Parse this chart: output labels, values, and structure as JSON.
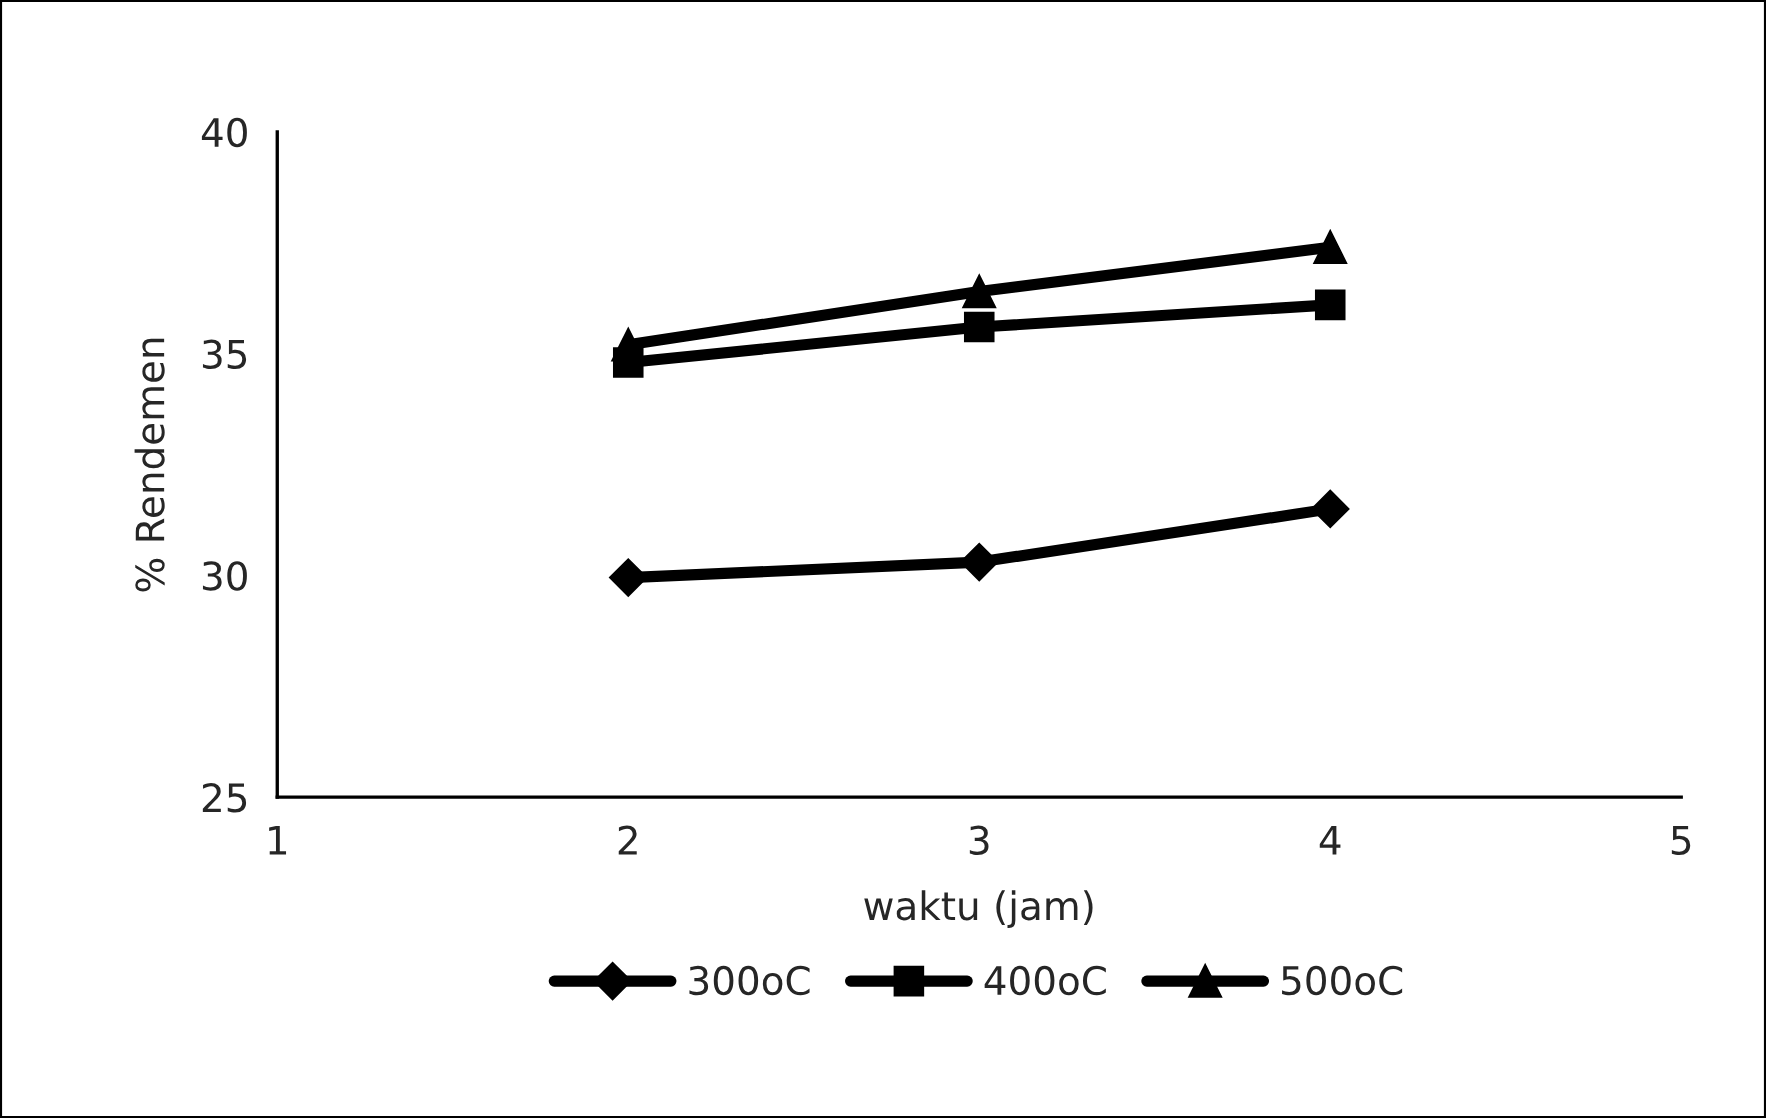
{
  "chart_data": {
    "type": "line",
    "xlabel": "waktu (jam)",
    "ylabel": "% Rendemen",
    "x": [
      2,
      3,
      4
    ],
    "series": [
      {
        "name": "300oC",
        "color": "#000000",
        "marker": "diamond",
        "values": [
          29.95,
          30.3,
          31.5
        ]
      },
      {
        "name": "400oC",
        "color": "#000000",
        "marker": "square",
        "values": [
          34.8,
          35.6,
          36.1
        ]
      },
      {
        "name": "500oC",
        "color": "#000000",
        "marker": "triangle",
        "values": [
          35.2,
          36.4,
          37.4
        ]
      }
    ],
    "xlim": [
      1,
      5
    ],
    "xticks": [
      1,
      2,
      3,
      4,
      5
    ],
    "ylim": [
      25,
      40
    ],
    "yticks": [
      25,
      30,
      35,
      40
    ],
    "grid": false,
    "legend": "bottom",
    "line_style": "solid"
  }
}
